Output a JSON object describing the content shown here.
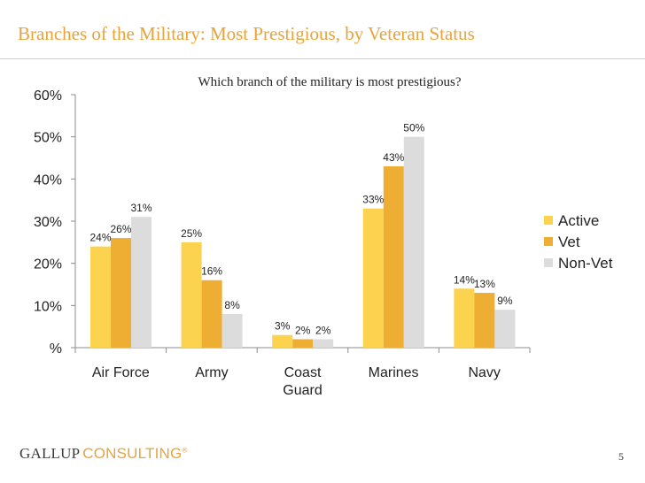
{
  "slide": {
    "title": "Branches of the Military: Most Prestigious, by Veteran Status",
    "page_number": "5"
  },
  "logo": {
    "primary": "GALLUP",
    "secondary": "CONSULTING",
    "mark": "®"
  },
  "colors": {
    "title": "#e8a33a",
    "active": "#fcd34f",
    "vet": "#eeae34",
    "non_vet": "#dcdcdc",
    "axis": "#8c8c8c"
  },
  "chart_data": {
    "type": "bar",
    "title": "Which branch of the military is most prestigious?",
    "categories": [
      [
        "Air Force"
      ],
      [
        "Army"
      ],
      [
        "Coast",
        "Guard"
      ],
      [
        "Marines"
      ],
      [
        "Navy"
      ]
    ],
    "series": [
      {
        "name": "Active",
        "values": [
          24,
          25,
          3,
          33,
          14
        ],
        "labels": [
          "24%",
          "25%",
          "3%",
          "33%",
          "14%"
        ],
        "color": "#fcd34f"
      },
      {
        "name": "Vet",
        "values": [
          26,
          16,
          2,
          43,
          13
        ],
        "labels": [
          "26%",
          "16%",
          "2%",
          "43%",
          "13%"
        ],
        "color": "#eeae34"
      },
      {
        "name": "Non-Vet",
        "values": [
          31,
          8,
          2,
          50,
          9
        ],
        "labels": [
          "31%",
          "8%",
          "2%",
          "50%",
          "9%"
        ],
        "color": "#dcdcdc"
      }
    ],
    "ylim": [
      0,
      60
    ],
    "yticks": [
      0,
      10,
      20,
      30,
      40,
      50,
      60
    ],
    "ytick_labels": [
      "%",
      "10%",
      "20%",
      "30%",
      "40%",
      "50%",
      "60%"
    ],
    "xlabel": "",
    "ylabel": "",
    "legend": "right",
    "grid": false
  }
}
